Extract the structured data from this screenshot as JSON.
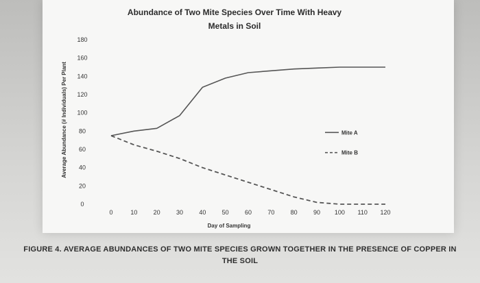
{
  "caption": {
    "line1": "FIGURE 4. AVERAGE ABUNDANCES OF TWO MITE SPECIES GROWN TOGETHER IN THE PRESENCE OF COPPER IN",
    "line2": "THE SOIL"
  },
  "chart_data": {
    "type": "line",
    "title_lines": [
      "Abundance of Two Mite Species Over Time With Heavy",
      "Metals in Soil"
    ],
    "xlabel": "Day of Sampling",
    "ylabel": "Average Abundance (# Individuals) Per Plant",
    "x": [
      0,
      10,
      20,
      30,
      40,
      50,
      60,
      70,
      80,
      90,
      100,
      110,
      120
    ],
    "x_tick_labels": [
      "0",
      "10",
      "20",
      "30",
      "40",
      "50",
      "60",
      "70",
      "80",
      "90",
      "100",
      "110",
      "120"
    ],
    "y_tick_labels": [
      "0",
      "20",
      "40",
      "60",
      "80",
      "100",
      "120",
      "140",
      "160",
      "180"
    ],
    "xlim": [
      0,
      120
    ],
    "ylim": [
      0,
      180
    ],
    "grid": false,
    "legend_position": "right",
    "series": [
      {
        "name": "Mite A",
        "style": "solid",
        "color": "#555555",
        "values": [
          75,
          80,
          83,
          97,
          128,
          138,
          144,
          146,
          148,
          149,
          150,
          150,
          150
        ]
      },
      {
        "name": "Mite B",
        "style": "dashed",
        "color": "#555555",
        "values": [
          75,
          65,
          58,
          50,
          40,
          32,
          24,
          16,
          8,
          2,
          0,
          0,
          0
        ]
      }
    ]
  }
}
